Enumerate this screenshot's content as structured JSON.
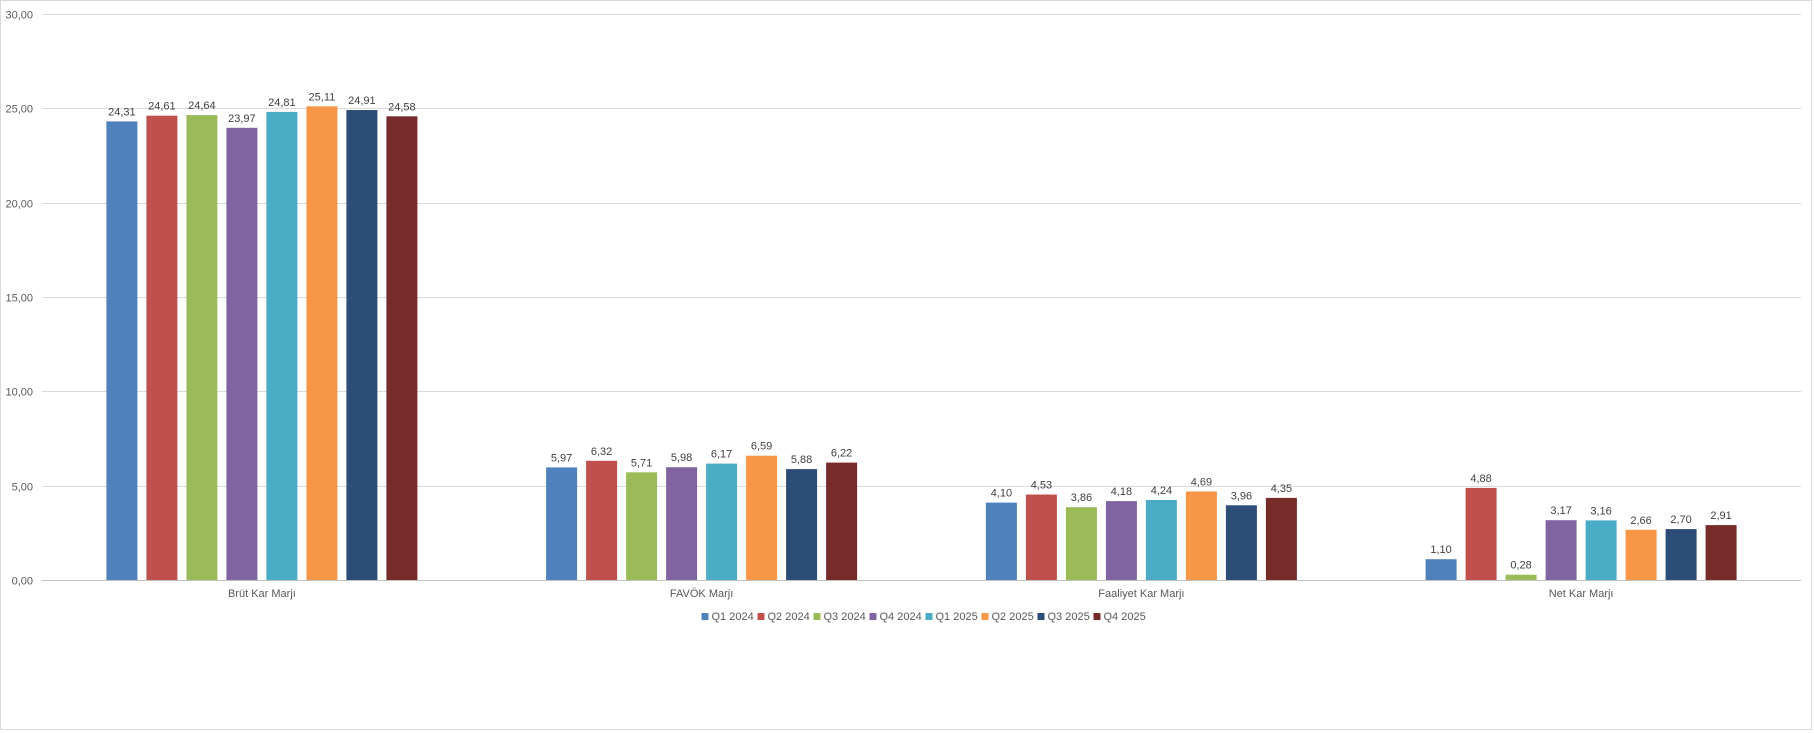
{
  "chart_data": {
    "type": "bar",
    "categories": [
      "Brüt Kar Marjı",
      "FAVÖK Marjı",
      "Faaliyet Kar Marjı",
      "Net Kar Marjı"
    ],
    "series": [
      {
        "name": "Q1 2024",
        "color": "#4F81BD",
        "values": [
          24.31,
          5.97,
          4.1,
          1.1
        ],
        "labels": [
          "24,31",
          "5,97",
          "4,10",
          "1,10"
        ]
      },
      {
        "name": "Q2 2024",
        "color": "#C0504D",
        "values": [
          24.61,
          6.32,
          4.53,
          4.88
        ],
        "labels": [
          "24,61",
          "6,32",
          "4,53",
          "4,88"
        ]
      },
      {
        "name": "Q3 2024",
        "color": "#9BBB59",
        "values": [
          24.64,
          5.71,
          3.86,
          0.28
        ],
        "labels": [
          "24,64",
          "5,71",
          "3,86",
          "0,28"
        ]
      },
      {
        "name": "Q4 2024",
        "color": "#8064A2",
        "values": [
          23.97,
          5.98,
          4.18,
          3.17
        ],
        "labels": [
          "23,97",
          "5,98",
          "4,18",
          "3,17"
        ]
      },
      {
        "name": "Q1 2025",
        "color": "#4BACC6",
        "values": [
          24.81,
          6.17,
          4.24,
          3.16
        ],
        "labels": [
          "24,81",
          "6,17",
          "4,24",
          "3,16"
        ]
      },
      {
        "name": "Q2 2025",
        "color": "#F79646",
        "values": [
          25.11,
          6.59,
          4.69,
          2.66
        ],
        "labels": [
          "25,11",
          "6,59",
          "4,69",
          "2,66"
        ]
      },
      {
        "name": "Q3 2025",
        "color": "#2C4D75",
        "values": [
          24.91,
          5.88,
          3.96,
          2.7
        ],
        "labels": [
          "24,91",
          "5,88",
          "3,96",
          "2,70"
        ]
      },
      {
        "name": "Q4 2025",
        "color": "#772C2A",
        "values": [
          24.58,
          6.22,
          4.35,
          2.91
        ],
        "labels": [
          "24,58",
          "6,22",
          "4,35",
          "2,91"
        ]
      }
    ],
    "ylim": [
      0,
      30
    ],
    "yticks": [
      0,
      5,
      10,
      15,
      20,
      25,
      30
    ],
    "ytick_labels": [
      "0,00",
      "5,00",
      "10,00",
      "15,00",
      "20,00",
      "25,00",
      "30,00"
    ],
    "title": "",
    "xlabel": "",
    "ylabel": "",
    "grid": true,
    "legend_position": "bottom"
  }
}
